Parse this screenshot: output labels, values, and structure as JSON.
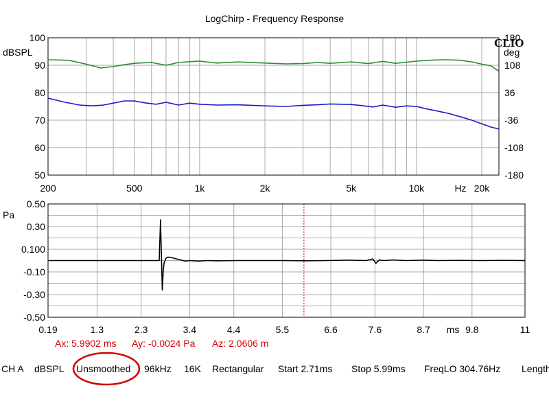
{
  "chart_data": [
    {
      "type": "line",
      "title": "LogChirp - Frequency Response",
      "x_scale": "log",
      "xlim": [
        200,
        24000
      ],
      "x_ticks": [
        {
          "value": 200,
          "label": "200"
        },
        {
          "value": 500,
          "label": "500"
        },
        {
          "value": 1000,
          "label": "1k"
        },
        {
          "value": 2000,
          "label": "2k"
        },
        {
          "value": 5000,
          "label": "5k"
        },
        {
          "value": 10000,
          "label": "10k"
        },
        {
          "value": 20000,
          "label": "20k"
        }
      ],
      "x_unit": "Hz",
      "ylabel": "dBSPL",
      "ylim": [
        50,
        100
      ],
      "y_ticks": [
        50,
        60,
        70,
        80,
        90,
        100
      ],
      "ylabel_right": "deg",
      "ylim_right": [
        -180,
        180
      ],
      "y_ticks_right": [
        -180,
        -108,
        -36,
        36,
        108,
        180
      ],
      "grid": true,
      "logo": "CLIO",
      "series": [
        {
          "color": "#1a1ac8",
          "axis": "left",
          "x": [
            200,
            240,
            280,
            320,
            360,
            400,
            450,
            500,
            560,
            630,
            700,
            800,
            900,
            1000,
            1200,
            1500,
            2000,
            2500,
            3000,
            3500,
            4000,
            4500,
            5000,
            5600,
            6300,
            7000,
            8000,
            9000,
            10000,
            11000,
            12500,
            14000,
            16000,
            18000,
            20000,
            22000,
            24000
          ],
          "y": [
            78,
            76.5,
            75.5,
            75.2,
            75.5,
            76.2,
            77,
            77,
            76.3,
            75.8,
            76.5,
            75.5,
            76.2,
            75.8,
            75.5,
            75.6,
            75.2,
            75,
            75.4,
            75.6,
            75.9,
            75.8,
            75.7,
            75.3,
            74.8,
            75.5,
            74.7,
            75.2,
            75,
            74.2,
            73.3,
            72.5,
            71.2,
            70,
            68.7,
            67.5,
            66.8
          ]
        },
        {
          "color": "#2e8b2e",
          "axis": "left",
          "x": [
            200,
            250,
            300,
            350,
            400,
            450,
            500,
            600,
            700,
            800,
            900,
            1000,
            1200,
            1500,
            2000,
            2500,
            3000,
            3500,
            4000,
            5000,
            6000,
            7000,
            8000,
            9000,
            10000,
            12000,
            14000,
            16000,
            18000,
            20000,
            22000,
            24000
          ],
          "y": [
            92,
            91.8,
            90.4,
            89,
            89.5,
            90.2,
            90.7,
            91,
            90,
            91,
            91.3,
            91.5,
            90.8,
            91.2,
            90.8,
            90.5,
            90.6,
            91,
            90.7,
            91.2,
            90.6,
            91.4,
            90.7,
            91.1,
            91.5,
            91.9,
            92,
            91.8,
            91.2,
            90.4,
            89.8,
            87.8
          ]
        }
      ]
    },
    {
      "type": "line",
      "x_scale": "linear",
      "xlim": [
        0.19,
        11
      ],
      "x_ticks": [
        0.19,
        1.3,
        2.3,
        3.4,
        4.4,
        5.5,
        6.6,
        7.6,
        8.7,
        9.8,
        11
      ],
      "x_unit": "ms",
      "ylabel": "Pa",
      "ylim": [
        -0.5,
        0.5
      ],
      "y_ticks": [
        {
          "value": 0.5,
          "label": "0.50"
        },
        {
          "value": 0.3,
          "label": "0.30"
        },
        {
          "value": 0.1,
          "label": "0.100"
        },
        {
          "value": -0.1,
          "label": "-0.10"
        },
        {
          "value": -0.3,
          "label": "-0.30"
        },
        {
          "value": -0.5,
          "label": "-0.50"
        }
      ],
      "grid": true,
      "marker_x": 5.99,
      "marker_color": "#d40000",
      "series": [
        {
          "color": "#000000",
          "x": [
            0.19,
            2.5,
            2.71,
            2.74,
            2.76,
            2.78,
            2.8,
            2.82,
            2.86,
            2.9,
            2.95,
            3.0,
            3.05,
            3.1,
            3.15,
            3.2,
            3.25,
            3.3,
            3.4,
            3.6,
            3.8,
            4.0,
            4.5,
            5.0,
            5.5,
            6.0,
            6.5,
            7.0,
            7.4,
            7.55,
            7.62,
            7.7,
            7.8,
            8.0,
            8.3,
            8.7,
            9.0,
            9.5,
            10.0,
            10.5,
            11.0
          ],
          "y": [
            0.0,
            0.0,
            0.0,
            0.36,
            0.05,
            -0.26,
            -0.1,
            -0.02,
            0.02,
            0.03,
            0.03,
            0.025,
            0.02,
            0.015,
            0.01,
            0.006,
            0.0,
            -0.004,
            0.0,
            -0.004,
            0.0,
            -0.002,
            0.0,
            0.0,
            0.0,
            -0.002,
            0.0,
            0.004,
            0.0,
            0.015,
            -0.024,
            0.006,
            0.0,
            0.006,
            0.0,
            0.004,
            0.0,
            0.002,
            0.0,
            0.002,
            0.0
          ]
        }
      ]
    }
  ],
  "cursor": {
    "ax": "Ax: 5.9902 ms",
    "ay": "Ay: -0.0024 Pa",
    "az": "Az: 2.0606 m"
  },
  "status_bar": {
    "channel": "CH A",
    "unit": "dBSPL",
    "smoothing": "Unsmoothed",
    "sample_rate": "96kHz",
    "size": "16K",
    "window": "Rectangular",
    "start": "Start 2.71ms",
    "stop": "Stop 5.99ms",
    "freq_lo": "FreqLO 304.76Hz",
    "length": "Length"
  },
  "highlight_color": "#d40000"
}
